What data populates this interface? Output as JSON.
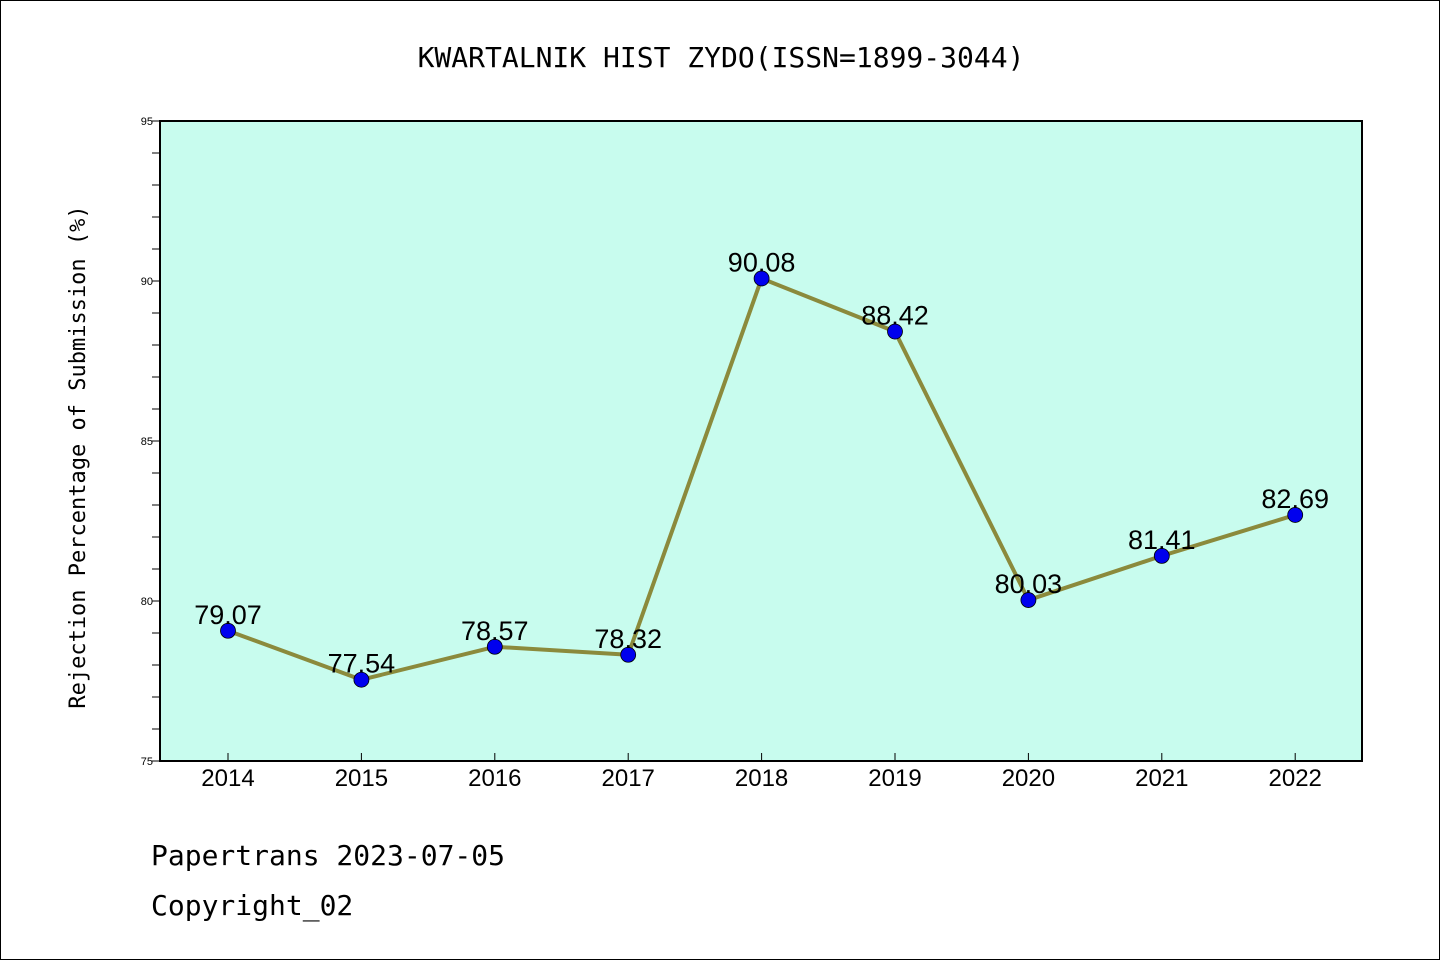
{
  "chart_data": {
    "type": "line",
    "title": "KWARTALNIK HIST ZYDO(ISSN=1899-3044)",
    "xlabel": "",
    "ylabel": "Rejection Percentage of Submission (%)",
    "categories": [
      "2014",
      "2015",
      "2016",
      "2017",
      "2018",
      "2019",
      "2020",
      "2021",
      "2022"
    ],
    "series": [
      {
        "values": [
          79.07,
          77.54,
          78.57,
          78.32,
          90.08,
          88.42,
          80.03,
          81.41,
          82.69
        ],
        "labels": [
          "79.07",
          "77.54",
          "78.57",
          "78.32",
          "90.08",
          "88.42",
          "80.03",
          "81.41",
          "82.69"
        ]
      }
    ],
    "ylim": [
      75,
      95
    ],
    "yticks": [
      "75",
      "80",
      "85",
      "90",
      "95"
    ],
    "grid": false,
    "colors": {
      "plot_background": "#c8fcee",
      "line": "#8b8a3c",
      "marker": "#0000ee"
    }
  },
  "footer": {
    "line1": "Papertrans 2023-07-05",
    "line2": "Copyright_02"
  }
}
